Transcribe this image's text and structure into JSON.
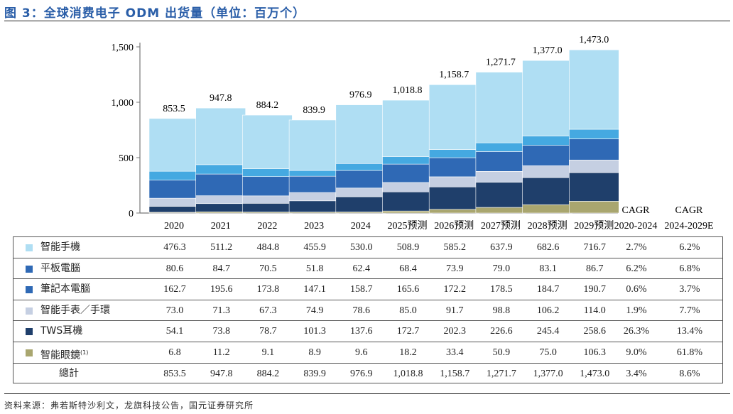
{
  "title": "图 3：全球消费电子 ODM 出货量（单位：百万个）",
  "source": "资料来源：弗若斯特沙利文，龙旗科技公告，国元证券研究所",
  "chart_data": {
    "type": "bar",
    "stacked": true,
    "title": "图 3：全球消费电子 ODM 出货量（单位：百万个）",
    "categories": [
      "2020",
      "2021",
      "2022",
      "2023",
      "2024",
      "2025预测",
      "2026预测",
      "2027预测",
      "2028预测",
      "2029预测"
    ],
    "ylim": [
      0,
      1500
    ],
    "yticks": [
      0,
      500,
      1000,
      1500
    ],
    "ytick_labels": [
      "0",
      "500",
      "1,000",
      "1,500"
    ],
    "grid": false,
    "series": [
      {
        "name": "智能眼鏡",
        "sup": "(1)",
        "color": "#a9a66f",
        "legend_color": "#a9a66f",
        "values": [
          6.8,
          11.2,
          9.1,
          8.9,
          9.6,
          18.2,
          33.4,
          50.9,
          75.0,
          106.3
        ],
        "cagr": [
          "9.0%",
          "61.8%"
        ]
      },
      {
        "name": "TWS耳機",
        "color": "#1f3f6b",
        "legend_color": "#1f3f6b",
        "values": [
          54.1,
          73.8,
          78.7,
          101.3,
          137.6,
          172.7,
          202.3,
          226.6,
          245.4,
          258.6
        ],
        "cagr": [
          "26.3%",
          "13.4%"
        ]
      },
      {
        "name": "智能手表／手環",
        "color": "#c5cfe2",
        "legend_color": "#c5cfe2",
        "values": [
          73.0,
          71.3,
          67.3,
          74.9,
          78.6,
          85.0,
          91.7,
          98.8,
          106.2,
          114.0
        ],
        "cagr": [
          "1.9%",
          "7.7%"
        ]
      },
      {
        "name": "筆記本電腦",
        "color": "#2f69b5",
        "legend_color": "#2f69b5",
        "values": [
          162.7,
          195.6,
          173.8,
          147.1,
          158.7,
          165.6,
          172.2,
          178.5,
          184.7,
          190.7
        ],
        "cagr": [
          "0.6%",
          "3.7%"
        ]
      },
      {
        "name": "平板電腦",
        "color": "#45a9e1",
        "legend_color": "#2f69b5",
        "values": [
          80.6,
          84.7,
          70.5,
          51.8,
          62.4,
          68.4,
          73.9,
          79.0,
          83.1,
          86.7
        ],
        "cagr": [
          "6.2%",
          "6.8%"
        ]
      },
      {
        "name": "智能手機",
        "color": "#afdef3",
        "legend_color": "#afdef3",
        "values": [
          476.3,
          511.2,
          484.8,
          455.9,
          530.0,
          508.9,
          585.2,
          637.9,
          682.6,
          716.7
        ],
        "cagr": [
          "2.7%",
          "6.2%"
        ]
      }
    ],
    "totals": [
      "853.5",
      "947.8",
      "884.2",
      "839.9",
      "976.9",
      "1,018.8",
      "1,158.7",
      "1,271.7",
      "1,377.0",
      "1,473.0"
    ],
    "total_label": "總計",
    "total_cagr": [
      "3.4%",
      "8.6%"
    ],
    "cagr_headers": [
      [
        "CAGR",
        "2020-2024"
      ],
      [
        "CAGR",
        "2024-2029E"
      ]
    ]
  }
}
